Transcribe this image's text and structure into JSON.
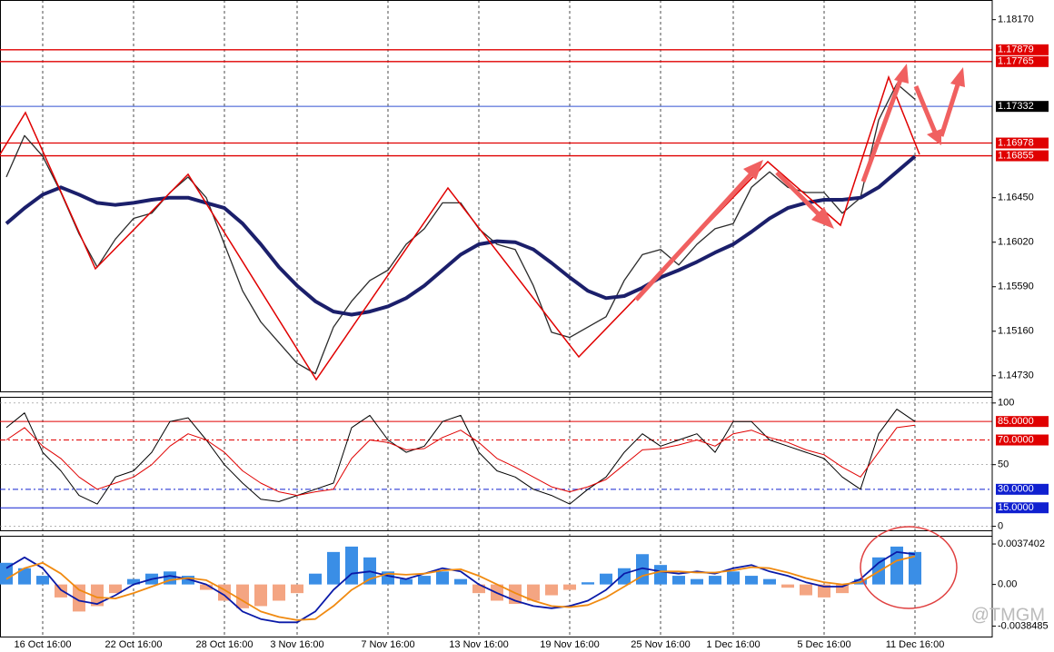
{
  "chart_data": [
    {
      "type": "line",
      "categories": [
        null,
        null,
        "16 Oct 16:00",
        null,
        null,
        null,
        null,
        "22 Oct 16:00",
        null,
        null,
        null,
        null,
        "28 Oct 16:00",
        null,
        null,
        null,
        "3 Nov 16:00",
        null,
        null,
        null,
        null,
        "7 Nov 16:00",
        null,
        null,
        null,
        null,
        "13 Nov 16:00",
        null,
        null,
        null,
        null,
        "19 Nov 16:00",
        null,
        null,
        null,
        null,
        "25 Nov 16:00",
        null,
        null,
        null,
        "1 Dec 16:00",
        null,
        null,
        null,
        null,
        "5 Dec 16:00",
        null,
        null,
        null,
        null,
        "11 Dec 16:00"
      ],
      "series": [
        {
          "color": "#2b2b2b",
          "width": 1.3,
          "values": [
            1.1665,
            1.1705,
            1.1685,
            1.165,
            1.161,
            1.1578,
            1.1605,
            1.1625,
            1.163,
            1.165,
            1.1665,
            1.1645,
            1.16,
            1.1555,
            1.1525,
            1.1505,
            1.1485,
            1.1475,
            1.152,
            1.1545,
            1.1565,
            1.1575,
            1.16,
            1.1615,
            1.164,
            1.164,
            1.1615,
            1.16,
            1.1595,
            1.156,
            1.1515,
            1.151,
            1.152,
            1.153,
            1.1565,
            1.159,
            1.1595,
            1.158,
            1.16,
            1.1615,
            1.162,
            1.1655,
            1.167,
            1.1655,
            1.165,
            1.165,
            1.163,
            1.1645,
            1.172,
            1.1755,
            1.174
          ]
        },
        {
          "color": "#1b1f6b",
          "width": 4,
          "values": [
            1.162,
            1.1635,
            1.1648,
            1.1655,
            1.1648,
            1.164,
            1.1638,
            1.164,
            1.1643,
            1.1645,
            1.1645,
            1.164,
            1.1635,
            1.162,
            1.16,
            1.1578,
            1.156,
            1.1545,
            1.1535,
            1.1532,
            1.1535,
            1.154,
            1.1548,
            1.156,
            1.1575,
            1.159,
            1.16,
            1.1603,
            1.1602,
            1.1595,
            1.1582,
            1.1568,
            1.1555,
            1.1548,
            1.155,
            1.1558,
            1.1568,
            1.1575,
            1.1583,
            1.1592,
            1.16,
            1.1612,
            1.1625,
            1.1635,
            1.164,
            1.1643,
            1.1643,
            1.1645,
            1.1655,
            1.167,
            1.1685
          ]
        }
      ],
      "ylim": [
        1.1457,
        1.1836
      ],
      "yticks": [
        {
          "value": 1.1817,
          "label": "1.18170"
        },
        {
          "value": 1.1645,
          "label": "1.16450"
        },
        {
          "value": 1.1602,
          "label": "1.16020"
        },
        {
          "value": 1.1559,
          "label": "1.15590"
        },
        {
          "value": 1.1516,
          "label": "1.15160"
        },
        {
          "value": 1.1473,
          "label": "1.14730"
        }
      ],
      "hlines": [
        {
          "value": 1.17879,
          "color": "#e00000"
        },
        {
          "value": 1.17765,
          "color": "#e00000"
        },
        {
          "value": 1.17332,
          "color": "#3050d0"
        },
        {
          "value": 1.16978,
          "color": "#e00000"
        },
        {
          "value": 1.16855,
          "color": "#e00000"
        }
      ]
    },
    {
      "type": "line",
      "series": [
        {
          "color": "#000000",
          "width": 1,
          "values": [
            80,
            92,
            60,
            45,
            25,
            18,
            40,
            45,
            60,
            85,
            88,
            70,
            50,
            35,
            22,
            20,
            25,
            30,
            35,
            80,
            90,
            70,
            60,
            65,
            85,
            90,
            60,
            45,
            40,
            30,
            25,
            18,
            30,
            40,
            60,
            75,
            65,
            70,
            75,
            60,
            85,
            85,
            70,
            65,
            60,
            55,
            40,
            30,
            75,
            95,
            85
          ]
        },
        {
          "color": "#e00000",
          "width": 1,
          "values": [
            70,
            80,
            65,
            55,
            40,
            30,
            35,
            40,
            50,
            65,
            75,
            70,
            60,
            45,
            35,
            28,
            25,
            28,
            30,
            55,
            70,
            68,
            62,
            63,
            72,
            78,
            68,
            55,
            48,
            40,
            32,
            28,
            32,
            38,
            50,
            62,
            63,
            66,
            70,
            65,
            75,
            78,
            72,
            68,
            62,
            58,
            48,
            40,
            60,
            80,
            82
          ]
        }
      ],
      "ylim": [
        -4,
        105
      ],
      "yticks": [
        100,
        50,
        0
      ],
      "hlines": [
        {
          "value": 85,
          "label": "85.0000",
          "color": "#e00000"
        },
        {
          "value": 70,
          "label": "70.0000",
          "color": "#e00000"
        },
        {
          "value": 30,
          "label": "30.0000",
          "color": "#1020d0"
        },
        {
          "value": 15,
          "label": "15.0000",
          "color": "#1020d0"
        }
      ]
    },
    {
      "type": "bar",
      "up_color": "#3a8ee6",
      "down_color": "#f4a582",
      "values": [
        0.002,
        0.0015,
        0.0008,
        -0.0012,
        -0.0025,
        -0.002,
        -0.0008,
        0.0005,
        0.001,
        0.0012,
        0.0008,
        -0.0005,
        -0.0015,
        -0.0022,
        -0.002,
        -0.0015,
        -0.0008,
        0.001,
        0.003,
        0.0035,
        0.0025,
        0.0012,
        0.0005,
        0.0008,
        0.0012,
        0.0005,
        -0.0008,
        -0.0015,
        -0.0018,
        -0.0015,
        -0.001,
        -0.0005,
        0.0002,
        0.001,
        0.0015,
        0.0028,
        0.0018,
        0.0008,
        0.0005,
        0.0008,
        0.0012,
        0.0008,
        0.0005,
        -0.0003,
        -0.001,
        -0.0012,
        -0.0008,
        0.0005,
        0.0025,
        0.0035,
        0.003
      ],
      "series": [
        {
          "color": "#0a1aa8",
          "width": 1.8,
          "values": [
            0.0015,
            0.0025,
            0.0015,
            -0.0005,
            -0.0015,
            -0.0018,
            -0.001,
            0,
            0.0005,
            0.0008,
            0.0005,
            0,
            -0.001,
            -0.0025,
            -0.0032,
            -0.0035,
            -0.0035,
            -0.0025,
            -0.0005,
            0.001,
            0.0012,
            0.0008,
            0.0005,
            0.001,
            0.0015,
            0.0012,
            0,
            -0.0008,
            -0.0015,
            -0.002,
            -0.0022,
            -0.002,
            -0.0015,
            -0.0005,
            0.001,
            0.0015,
            0.0012,
            0.001,
            0.0012,
            0.001,
            0.0015,
            0.0018,
            0.0012,
            0.0008,
            0.0002,
            -0.0002,
            -0.0002,
            0.0005,
            0.002,
            0.003,
            0.0028
          ]
        },
        {
          "color": "#f08a10",
          "width": 1.8,
          "values": [
            0.0005,
            0.0015,
            0.002,
            0.001,
            -0.0005,
            -0.0012,
            -0.0013,
            -0.0008,
            -0.0002,
            0.0004,
            0.0006,
            0.0004,
            -0.0005,
            -0.0015,
            -0.0025,
            -0.003,
            -0.0033,
            -0.0032,
            -0.002,
            -0.0005,
            0.0005,
            0.001,
            0.0009,
            0.001,
            0.0013,
            0.0014,
            0.0008,
            0,
            -0.0008,
            -0.0015,
            -0.002,
            -0.0021,
            -0.0019,
            -0.0012,
            -0.0002,
            0.0008,
            0.0012,
            0.0012,
            0.0011,
            0.0011,
            0.0013,
            0.0016,
            0.0015,
            0.0011,
            0.0006,
            0.0002,
            0,
            0.0002,
            0.0012,
            0.0022,
            0.0026
          ]
        }
      ],
      "ylim": [
        -0.0049,
        0.0045
      ],
      "yticks": [
        0.0037402,
        {
          "value": 0,
          "label": "0.00"
        },
        -0.0038485
      ]
    }
  ],
  "watermark": "@TMGM"
}
